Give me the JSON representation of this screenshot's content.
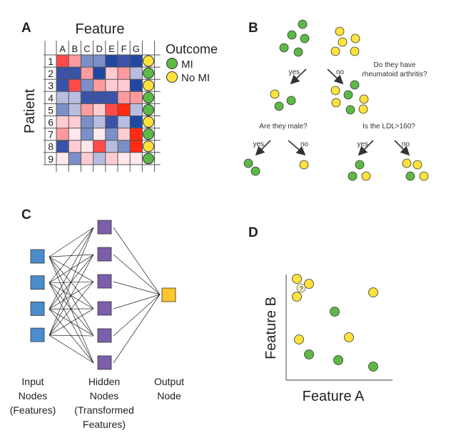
{
  "panel_a": {
    "letter": "A",
    "title": "Feature",
    "ylabel": "Patient",
    "columns": [
      "A",
      "B",
      "C",
      "D",
      "E",
      "F",
      "G"
    ],
    "rows": [
      "1",
      "2",
      "3",
      "4",
      "5",
      "6",
      "7",
      "8",
      "9"
    ],
    "cells": [
      [
        "#ff4a4a",
        "#ff9a9e",
        "#7b8fc8",
        "#7b8fc8",
        "#2148a0",
        "#3a52a8",
        "#2148a0"
      ],
      [
        "#3a52a8",
        "#3a52a8",
        "#ff9a9e",
        "#2148a0",
        "#ffccd2",
        "#ff9a9e",
        "#b8bde0"
      ],
      [
        "#3a52a8",
        "#ff4a4a",
        "#7b8fc8",
        "#ff9a9e",
        "#ffccd2",
        "#ffccd2",
        "#2148a0"
      ],
      [
        "#b8bde0",
        "#b8bde0",
        "#3a52a8",
        "#3a52a8",
        "#3a52a8",
        "#ff9a9e",
        "#ff9a9e"
      ],
      [
        "#7b8fc8",
        "#b8bde0",
        "#ff9a9e",
        "#ffccd2",
        "#ff4a4a",
        "#ff2a12",
        "#b8bde0"
      ],
      [
        "#ffccd2",
        "#ffccd2",
        "#7b8fc8",
        "#b8bde0",
        "#3a52a8",
        "#b8bde0",
        "#2148a0"
      ],
      [
        "#ff9a9e",
        "#fde8ec",
        "#7b8fc8",
        "#fde8ec",
        "#7b8fc8",
        "#ffccd2",
        "#ff2a12"
      ],
      [
        "#3a52a8",
        "#ffccd2",
        "#fde8ec",
        "#ff4a4a",
        "#b8bde0",
        "#7b8fc8",
        "#ff2a12"
      ],
      [
        "#fde8ec",
        "#7b8fc8",
        "#ffccd2",
        "#b8bde0",
        "#ffccd2",
        "#fde8ec",
        "#fde8ec"
      ]
    ],
    "outcomes": [
      "No MI",
      "MI",
      "No MI",
      "MI",
      "MI",
      "No MI",
      "MI",
      "No MI",
      "MI"
    ],
    "legend": {
      "title": "Outcome",
      "mi": "MI",
      "no_mi": "No MI"
    }
  },
  "colors": {
    "mi": "#5cb947",
    "no_mi": "#ffe23c",
    "input": "#4a8ccc",
    "hidden": "#7b5fad",
    "output": "#ffc62e",
    "unknown": "#f3f0c8"
  },
  "panel_b": {
    "letter": "B",
    "q1": [
      "Do they have",
      "rheumatoid arthritis?"
    ],
    "q2": "Are they male?",
    "q3": "Is the LDL>160?",
    "yes": "yes",
    "no": "no"
  },
  "panel_c": {
    "letter": "C",
    "input_label": [
      "Input",
      "Nodes",
      "(Features)"
    ],
    "hidden_label": [
      "Hidden",
      "Nodes",
      "(Transformed",
      "Features)"
    ],
    "output_label": [
      "Output",
      "Node"
    ],
    "input_count": 4,
    "hidden_count": 6,
    "output_count": 1
  },
  "panel_d": {
    "letter": "D",
    "xlabel": "Feature A",
    "ylabel": "Feature B",
    "unknown_mark": "?"
  }
}
